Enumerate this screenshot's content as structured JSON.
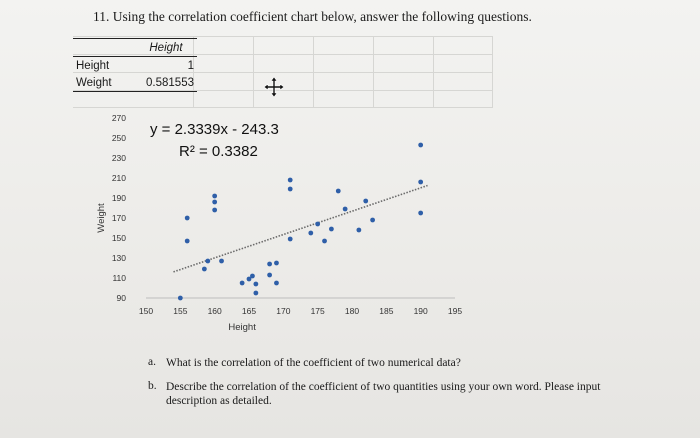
{
  "question": {
    "title": "11. Using the correlation coefficient chart below, answer the following questions."
  },
  "corr_table": {
    "col_header": "Height",
    "rows": [
      {
        "label": "Height",
        "value": "1"
      },
      {
        "label": "Weight",
        "value": "0.581553"
      }
    ]
  },
  "chart_data": {
    "type": "scatter",
    "xlabel": "Height",
    "ylabel": "Weight",
    "xlim": [
      150,
      195
    ],
    "ylim": [
      90,
      270
    ],
    "xticks": [
      "150",
      "155",
      "160",
      "165",
      "170",
      "175",
      "180",
      "185",
      "190",
      "195"
    ],
    "yticks": [
      "270",
      "250",
      "230",
      "210",
      "190",
      "170",
      "150",
      "130",
      "110",
      "90"
    ],
    "equation": "y = 2.3339x - 243.3",
    "r_squared": "R² = 0.3382",
    "points": [
      {
        "x": 155,
        "y": 90
      },
      {
        "x": 156,
        "y": 170
      },
      {
        "x": 156,
        "y": 147
      },
      {
        "x": 158.5,
        "y": 119
      },
      {
        "x": 159,
        "y": 127
      },
      {
        "x": 160,
        "y": 178
      },
      {
        "x": 160,
        "y": 186
      },
      {
        "x": 160,
        "y": 192
      },
      {
        "x": 161,
        "y": 127
      },
      {
        "x": 164,
        "y": 105
      },
      {
        "x": 165,
        "y": 109
      },
      {
        "x": 165.5,
        "y": 112
      },
      {
        "x": 166,
        "y": 104
      },
      {
        "x": 166,
        "y": 95
      },
      {
        "x": 168,
        "y": 124
      },
      {
        "x": 168,
        "y": 113
      },
      {
        "x": 169,
        "y": 125
      },
      {
        "x": 169,
        "y": 105
      },
      {
        "x": 171,
        "y": 199
      },
      {
        "x": 171,
        "y": 208
      },
      {
        "x": 171,
        "y": 149
      },
      {
        "x": 174,
        "y": 155
      },
      {
        "x": 175,
        "y": 164
      },
      {
        "x": 176,
        "y": 147
      },
      {
        "x": 177,
        "y": 159
      },
      {
        "x": 178,
        "y": 197
      },
      {
        "x": 179,
        "y": 179
      },
      {
        "x": 181,
        "y": 158
      },
      {
        "x": 182,
        "y": 187
      },
      {
        "x": 183,
        "y": 168
      },
      {
        "x": 190,
        "y": 243
      },
      {
        "x": 190,
        "y": 206
      },
      {
        "x": 190,
        "y": 175
      }
    ],
    "trendline": {
      "slope": 2.3339,
      "intercept": -243.3,
      "x_from": 154,
      "x_to": 191
    }
  },
  "parts": [
    {
      "label": "a.",
      "text": "What is the correlation of the coefficient of two numerical data?"
    },
    {
      "label": "b.",
      "text": "Describe the correlation of the coefficient of two quantities using your own word. Please input description as detailed."
    }
  ]
}
